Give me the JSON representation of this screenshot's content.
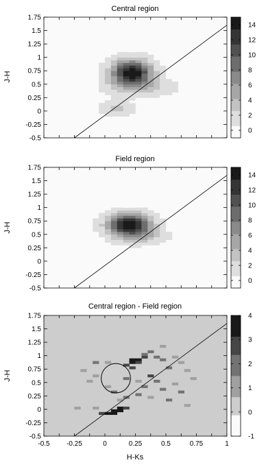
{
  "chart_data": [
    {
      "type": "heatmap",
      "title": "Central region",
      "xlabel": "",
      "ylabel": "J-H",
      "xlim": [
        -0.5,
        1
      ],
      "ylim": [
        -0.5,
        1.75
      ],
      "yticks": [
        "-0.5",
        "-0.25",
        "0",
        "0.25",
        "0.5",
        "0.75",
        "1",
        "1.25",
        "1.5",
        "1.75"
      ],
      "show_xtick_labels": false,
      "colorbar": {
        "range": [
          -1,
          15
        ],
        "ticks": [
          "0",
          "2",
          "4",
          "6",
          "8",
          "10",
          "12",
          "14"
        ]
      },
      "line": {
        "x": [
          -0.25,
          1.0
        ],
        "y": [
          -0.5,
          1.6
        ]
      },
      "blobs": [
        {
          "x": 0.22,
          "y": 0.72,
          "sx": 0.11,
          "sy": 0.16,
          "peak": 15
        },
        {
          "x": 0.1,
          "y": 0.05,
          "sx": 0.09,
          "sy": 0.09,
          "peak": 3
        },
        {
          "x": 0.28,
          "y": 0.45,
          "sx": 0.2,
          "sy": 0.12,
          "peak": 3
        }
      ]
    },
    {
      "type": "heatmap",
      "title": "Field region",
      "xlabel": "",
      "ylabel": "J-H",
      "xlim": [
        -0.5,
        1
      ],
      "ylim": [
        -0.5,
        1.75
      ],
      "yticks": [
        "-0.5",
        "-0.25",
        "0",
        "0.25",
        "0.5",
        "0.75",
        "1",
        "1.25",
        "1.5",
        "1.75"
      ],
      "show_xtick_labels": false,
      "colorbar": {
        "range": [
          -1,
          15
        ],
        "ticks": [
          "0",
          "2",
          "4",
          "6",
          "8",
          "10",
          "12",
          "14"
        ]
      },
      "line": {
        "x": [
          -0.25,
          1.0
        ],
        "y": [
          -0.5,
          1.6
        ]
      },
      "blobs": [
        {
          "x": 0.2,
          "y": 0.68,
          "sx": 0.12,
          "sy": 0.14,
          "peak": 15
        },
        {
          "x": 0.3,
          "y": 0.45,
          "sx": 0.15,
          "sy": 0.1,
          "peak": 3
        }
      ]
    },
    {
      "type": "heatmap",
      "title": "Central region - Field region",
      "xlabel": "H-Ks",
      "ylabel": "J-H",
      "xlim": [
        -0.5,
        1
      ],
      "ylim": [
        -0.5,
        1.75
      ],
      "yticks": [
        "-0.5",
        "-0.25",
        "0",
        "0.25",
        "0.5",
        "0.75",
        "1",
        "1.25",
        "1.5",
        "1.75"
      ],
      "xticks": [
        "-0.5",
        "-0.25",
        "0",
        "0.25",
        "0.5",
        "0.75",
        "1"
      ],
      "show_xtick_labels": true,
      "colorbar": {
        "range": [
          -1,
          4
        ],
        "ticks": [
          "-1",
          "0",
          "1",
          "2",
          "3",
          "4"
        ]
      },
      "line": {
        "x": [
          -0.25,
          1.0
        ],
        "y": [
          -0.5,
          1.6
        ]
      },
      "circle": {
        "cx": 0.09,
        "cy": 0.58,
        "r": 0.12
      },
      "cells": [
        {
          "x": 0.0,
          "y": -0.1,
          "v": 4
        },
        {
          "x": 0.05,
          "y": -0.1,
          "v": 4
        },
        {
          "x": 0.05,
          "y": -0.05,
          "v": 4
        },
        {
          "x": 0.1,
          "y": -0.05,
          "v": 4
        },
        {
          "x": 0.1,
          "y": 0.0,
          "v": 4
        },
        {
          "x": -0.05,
          "y": -0.1,
          "v": 3
        },
        {
          "x": 0.15,
          "y": 0.0,
          "v": 3
        },
        {
          "x": 0.2,
          "y": 0.9,
          "v": 4
        },
        {
          "x": 0.25,
          "y": 0.9,
          "v": 4
        },
        {
          "x": 0.2,
          "y": 0.85,
          "v": 4
        },
        {
          "x": 0.25,
          "y": 0.85,
          "v": 3
        },
        {
          "x": 0.3,
          "y": 0.95,
          "v": 3
        },
        {
          "x": 0.15,
          "y": 0.8,
          "v": 3
        },
        {
          "x": 0.2,
          "y": 0.75,
          "v": 3
        },
        {
          "x": 0.35,
          "y": 0.6,
          "v": 3
        },
        {
          "x": 0.3,
          "y": 1.0,
          "v": 2
        },
        {
          "x": 0.35,
          "y": 1.05,
          "v": 2
        },
        {
          "x": 0.4,
          "y": 0.95,
          "v": 2
        },
        {
          "x": 0.45,
          "y": 0.9,
          "v": 2
        },
        {
          "x": 0.5,
          "y": 0.75,
          "v": 2
        },
        {
          "x": 0.4,
          "y": 0.5,
          "v": 2
        },
        {
          "x": 0.3,
          "y": 0.4,
          "v": 2
        },
        {
          "x": 0.45,
          "y": 0.35,
          "v": 2
        },
        {
          "x": 0.15,
          "y": 0.2,
          "v": 2
        },
        {
          "x": 0.25,
          "y": 0.25,
          "v": 2
        },
        {
          "x": -0.1,
          "y": 0.85,
          "v": 2
        },
        {
          "x": 0.5,
          "y": 0.15,
          "v": 2
        },
        {
          "x": 0.6,
          "y": 0.3,
          "v": 2
        },
        {
          "x": 0.05,
          "y": 0.3,
          "v": 2
        },
        {
          "x": 0.15,
          "y": 0.55,
          "v": 2
        },
        {
          "x": -0.1,
          "y": 0.6,
          "v": 1
        },
        {
          "x": -0.15,
          "y": 0.5,
          "v": 1
        },
        {
          "x": -0.2,
          "y": 0.7,
          "v": 1
        },
        {
          "x": 0.0,
          "y": 0.4,
          "v": 1
        },
        {
          "x": 0.55,
          "y": 0.95,
          "v": 1
        },
        {
          "x": 0.6,
          "y": 0.85,
          "v": 1
        },
        {
          "x": 0.65,
          "y": 0.7,
          "v": 1
        },
        {
          "x": 0.7,
          "y": 0.55,
          "v": 1
        },
        {
          "x": 0.35,
          "y": 0.2,
          "v": 1
        },
        {
          "x": 0.1,
          "y": 0.15,
          "v": 1
        },
        {
          "x": -0.1,
          "y": 0.0,
          "v": 1
        },
        {
          "x": -0.25,
          "y": 0.0,
          "v": 1
        },
        {
          "x": 0.65,
          "y": 0.05,
          "v": 1
        },
        {
          "x": 0.55,
          "y": 0.45,
          "v": 1
        },
        {
          "x": 0.45,
          "y": 1.15,
          "v": 1
        },
        {
          "x": 0.25,
          "y": 0.5,
          "v": 1
        },
        {
          "x": 0.0,
          "y": 0.85,
          "v": 1
        }
      ]
    }
  ]
}
